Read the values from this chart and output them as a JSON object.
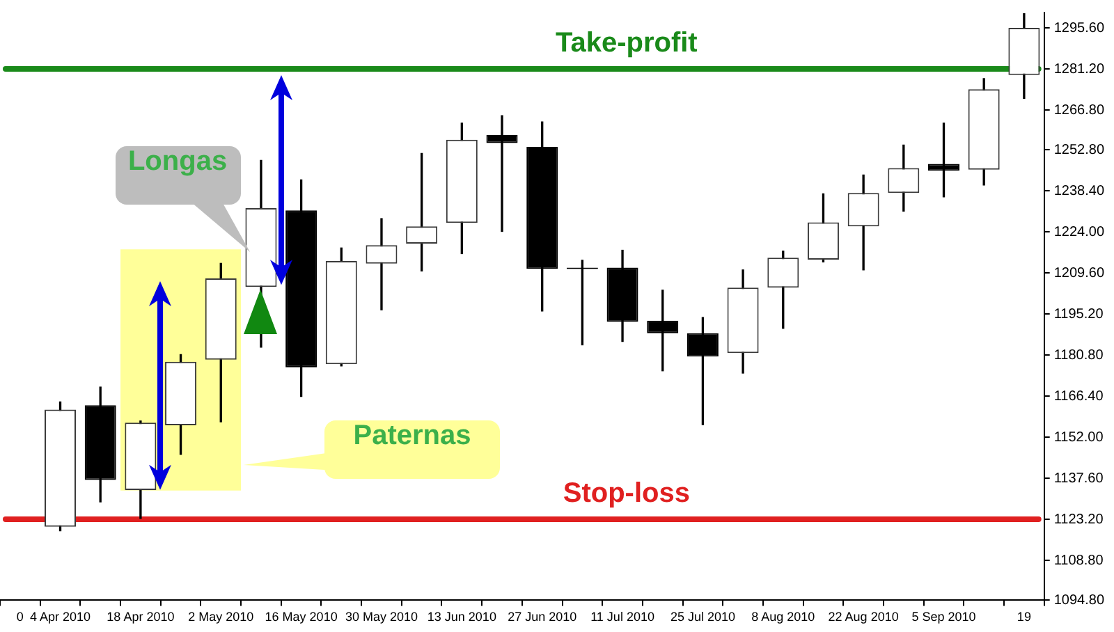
{
  "chart_data": {
    "type": "candlestick",
    "categories": [
      "0",
      "4 Apr 2010",
      null,
      "18 Apr 2010",
      null,
      "2 May 2010",
      null,
      "16 May 2010",
      null,
      "30 May 2010",
      null,
      "13 Jun 2010",
      null,
      "27 Jun 2010",
      null,
      "11 Jul 2010",
      null,
      "25 Jul 2010",
      null,
      "8 Aug 2010",
      null,
      "22 Aug 2010",
      null,
      "5 Sep 2010",
      null,
      "19"
    ],
    "ohlc": [
      null,
      [
        1120.6,
        1164.4,
        1119.2,
        1161.7
      ],
      [
        1163.2,
        1169.6,
        1129.3,
        1137.0
      ],
      [
        1133.5,
        1157.7,
        1123.5,
        1157.1
      ],
      [
        1156.2,
        1181.0,
        1146.0,
        1178.5
      ],
      [
        1179.2,
        1213.0,
        1157.4,
        1207.7
      ],
      [
        1204.7,
        1249.1,
        1183.6,
        1232.4
      ],
      [
        1231.6,
        1242.3,
        1166.3,
        1176.5
      ],
      [
        1177.6,
        1218.4,
        1177.0,
        1213.8
      ],
      [
        1212.9,
        1228.7,
        1196.7,
        1219.4
      ],
      [
        1219.9,
        1251.6,
        1210.3,
        1226.0
      ],
      [
        1227.2,
        1262.2,
        1216.4,
        1256.4
      ],
      [
        1258.0,
        1264.8,
        1224.2,
        1255.2
      ],
      [
        1253.9,
        1262.6,
        1196.3,
        1211.1
      ],
      [
        1211.5,
        1214.1,
        1184.4,
        1211.0
      ],
      [
        1211.5,
        1217.6,
        1185.6,
        1192.5
      ],
      [
        1192.9,
        1203.6,
        1175.3,
        1188.5
      ],
      [
        1188.5,
        1194.0,
        1156.4,
        1180.3
      ],
      [
        1181.5,
        1210.7,
        1174.5,
        1204.5
      ],
      [
        1204.5,
        1217.3,
        1190.2,
        1215.0
      ],
      [
        1214.3,
        1237.4,
        1213.5,
        1227.4
      ],
      [
        1226.0,
        1244.0,
        1210.7,
        1237.7
      ],
      [
        1237.7,
        1254.5,
        1231.3,
        1246.4
      ],
      [
        1247.9,
        1262.2,
        1236.3,
        1245.5
      ],
      [
        1245.9,
        1277.8,
        1240.5,
        1274.1
      ],
      [
        1279.1,
        1300.6,
        1270.9,
        1295.6
      ]
    ],
    "ylim": [
      1094.8,
      1301
    ],
    "yticks": [
      {
        "value": 1094.8,
        "label": "1094.80"
      },
      {
        "value": 1108.8,
        "label": "1108.80"
      },
      {
        "value": 1123.2,
        "label": "1123.20"
      },
      {
        "value": 1137.6,
        "label": "1137.60"
      },
      {
        "value": 1152.0,
        "label": "1152.00"
      },
      {
        "value": 1166.4,
        "label": "1166.40"
      },
      {
        "value": 1180.8,
        "label": "1180.80"
      },
      {
        "value": 1195.2,
        "label": "1195.20"
      },
      {
        "value": 1209.6,
        "label": "1209.60"
      },
      {
        "value": 1224.0,
        "label": "1224.00"
      },
      {
        "value": 1238.4,
        "label": "1238.40"
      },
      {
        "value": 1252.8,
        "label": "1252.80"
      },
      {
        "value": 1266.8,
        "label": "1266.80"
      },
      {
        "value": 1281.2,
        "label": "1281.20"
      },
      {
        "value": 1295.6,
        "label": "1295.60"
      }
    ],
    "ref_lines": [
      {
        "axis": "y",
        "value": 1281.2,
        "label": "Take-profit",
        "color": "#1a8a1a"
      },
      {
        "axis": "y",
        "value": 1123.2,
        "label": "Stop-loss",
        "color": "#e02020"
      }
    ],
    "bands": [
      {
        "axis": "x",
        "from": "18 Apr 2010",
        "to": "2 May 2010",
        "color": "#ffff99"
      }
    ],
    "annotations": [
      "Longas",
      "Paternas"
    ],
    "grid": false,
    "legend": false
  }
}
